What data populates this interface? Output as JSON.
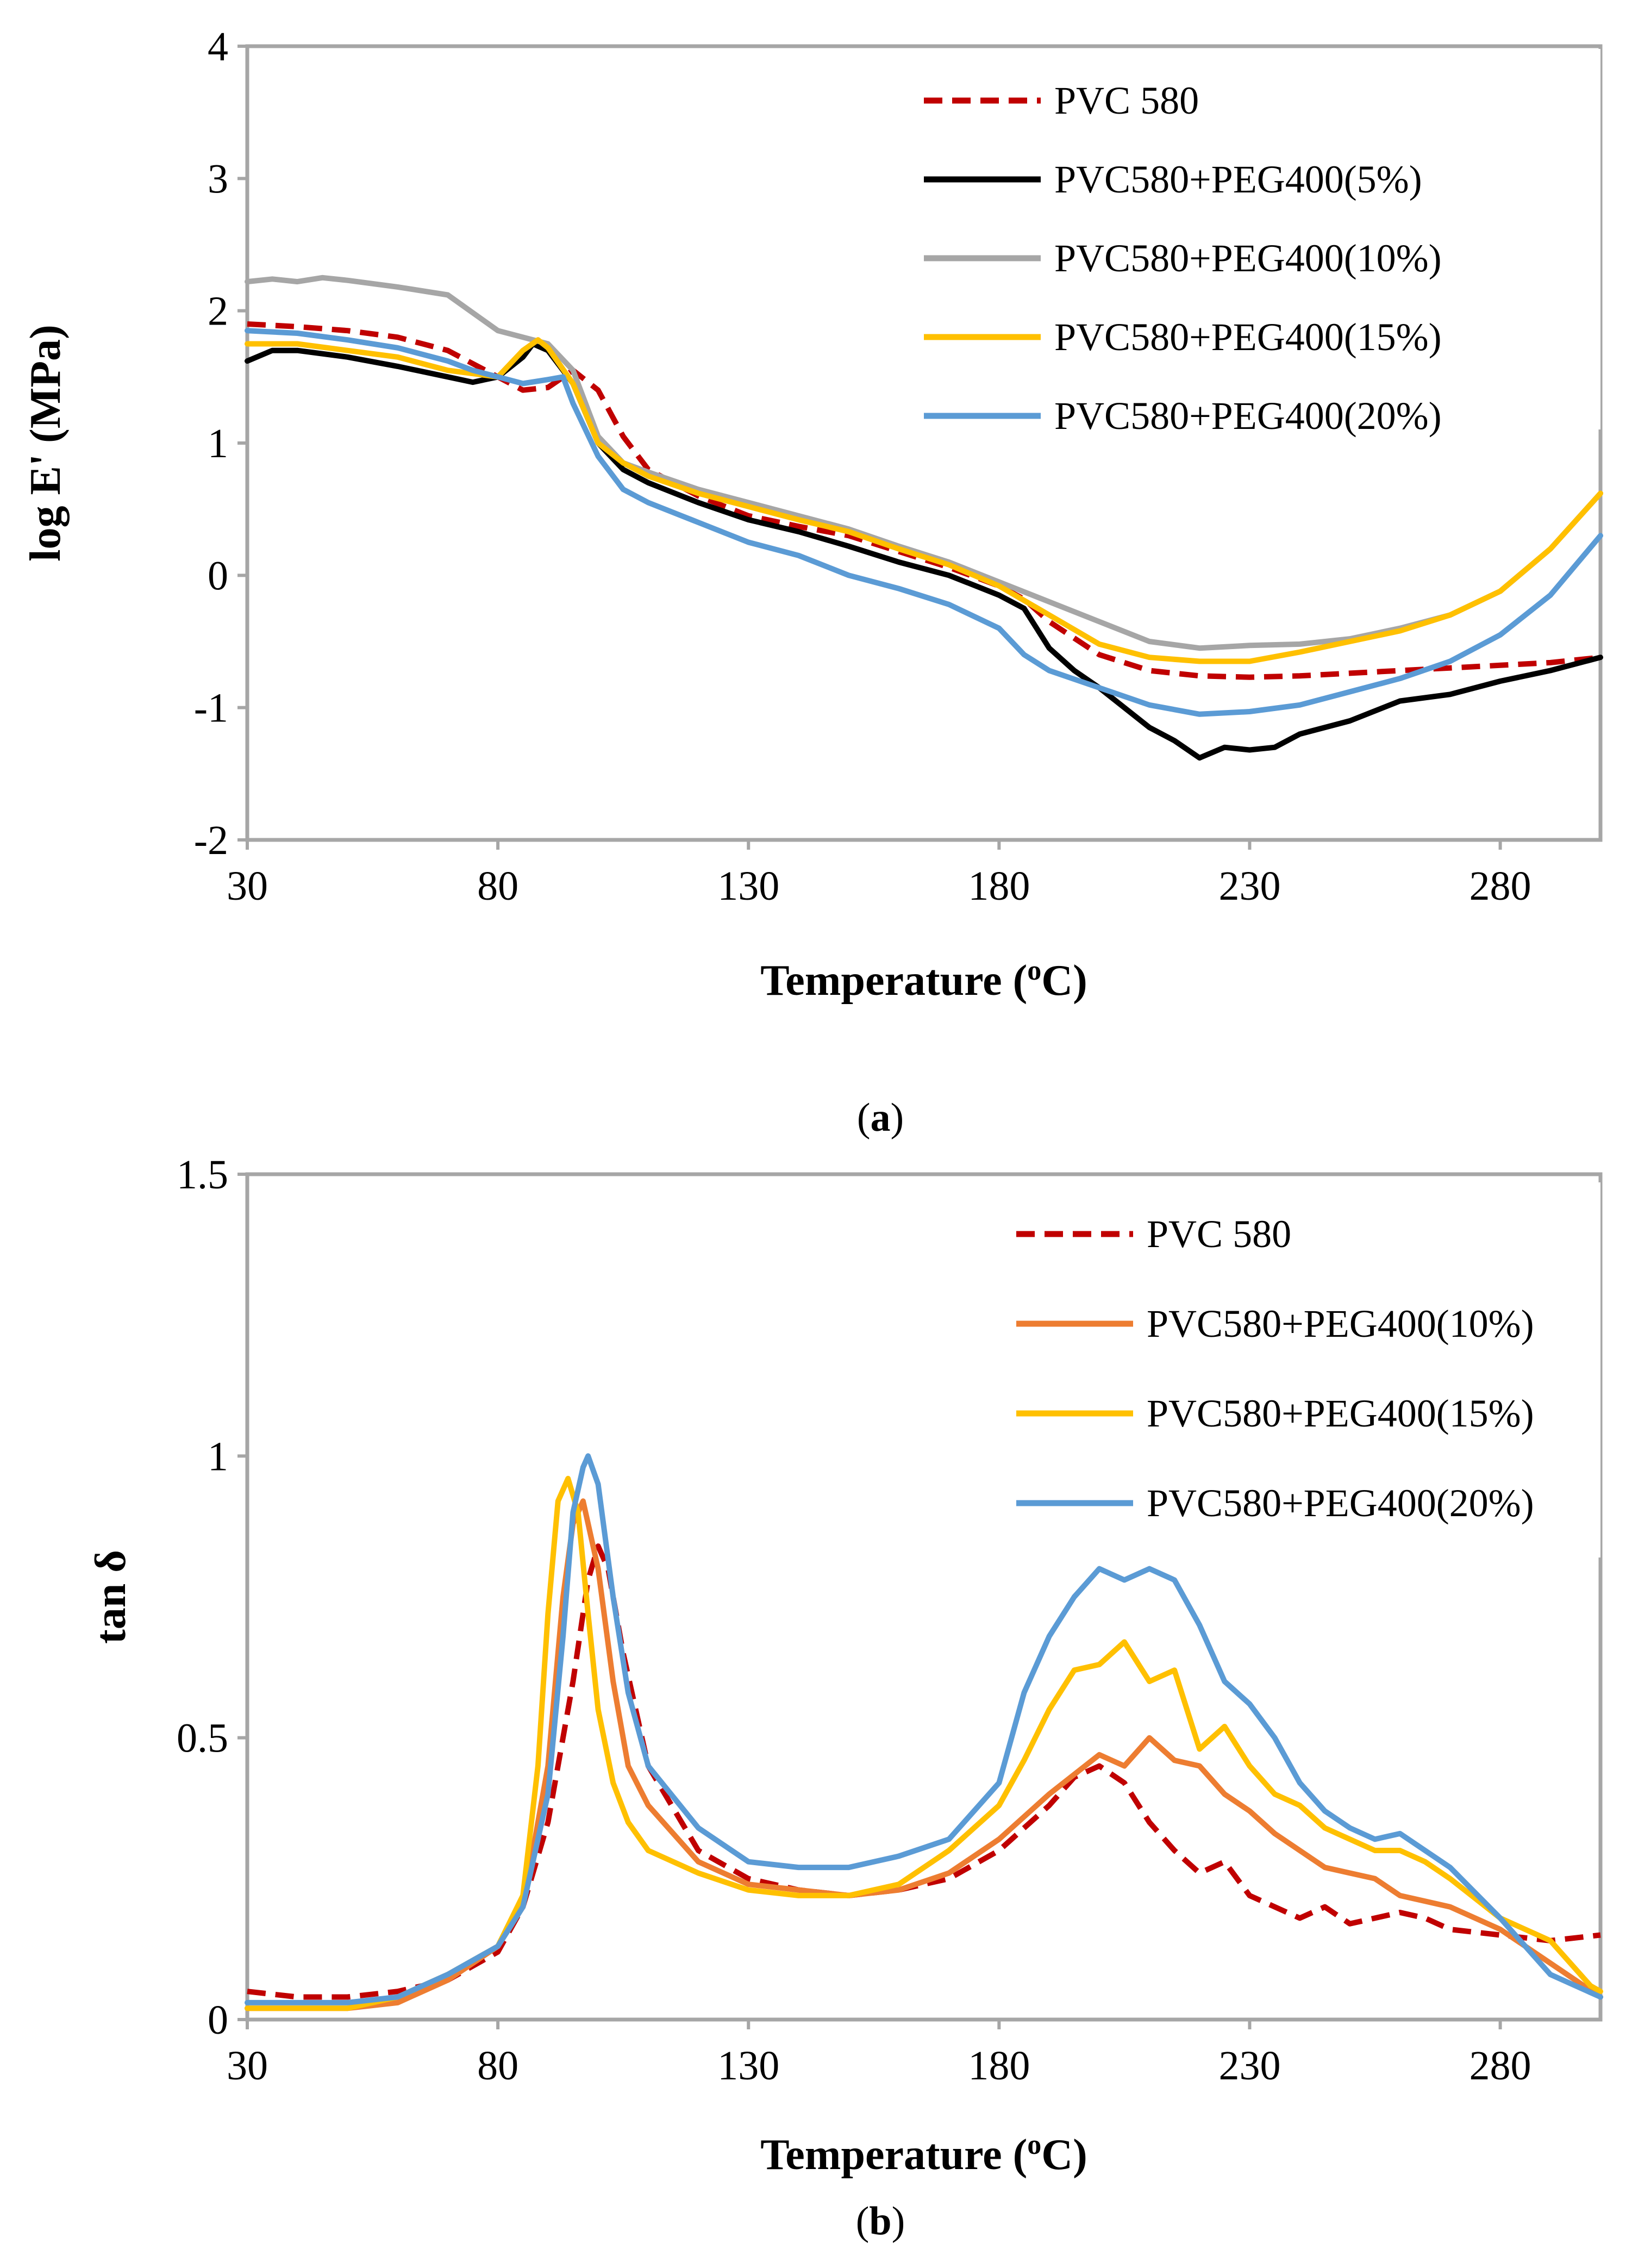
{
  "chart_data": [
    {
      "type": "line",
      "panel": "a",
      "caption": "(a)",
      "caption_letter": "a",
      "xlabel": "Temperature (oC)",
      "ylabel": "log E' (MPa)",
      "xlim": [
        30,
        300
      ],
      "ylim": [
        -2,
        4
      ],
      "xticks": [
        30,
        80,
        130,
        180,
        230,
        280
      ],
      "yticks": [
        -2,
        -1,
        0,
        1,
        2,
        3,
        4
      ],
      "legend_position": "top-right",
      "series": [
        {
          "name": "PVC 580",
          "color": "#C00000",
          "dash": "dashed",
          "width": 10,
          "x": [
            30,
            40,
            50,
            60,
            70,
            80,
            85,
            90,
            95,
            100,
            105,
            110,
            120,
            130,
            140,
            150,
            160,
            170,
            180,
            185,
            190,
            200,
            210,
            220,
            230,
            240,
            250,
            260,
            270,
            280,
            290,
            300
          ],
          "y": [
            1.9,
            1.88,
            1.85,
            1.8,
            1.7,
            1.5,
            1.4,
            1.42,
            1.55,
            1.4,
            1.05,
            0.8,
            0.6,
            0.45,
            0.37,
            0.3,
            0.18,
            0.06,
            -0.08,
            -0.18,
            -0.35,
            -0.6,
            -0.72,
            -0.76,
            -0.77,
            -0.76,
            -0.74,
            -0.72,
            -0.7,
            -0.68,
            -0.66,
            -0.62
          ]
        },
        {
          "name": "PVC580+PEG400(5%)",
          "color": "#000000",
          "dash": "solid",
          "width": 10,
          "x": [
            30,
            35,
            40,
            50,
            60,
            70,
            75,
            80,
            85,
            87,
            90,
            95,
            100,
            105,
            110,
            120,
            130,
            140,
            150,
            160,
            170,
            180,
            185,
            190,
            195,
            200,
            205,
            210,
            215,
            220,
            225,
            230,
            235,
            240,
            250,
            260,
            270,
            280,
            290,
            300
          ],
          "y": [
            1.62,
            1.7,
            1.7,
            1.65,
            1.58,
            1.5,
            1.46,
            1.5,
            1.65,
            1.75,
            1.7,
            1.45,
            1.0,
            0.8,
            0.7,
            0.55,
            0.42,
            0.33,
            0.22,
            0.1,
            0.0,
            -0.15,
            -0.25,
            -0.55,
            -0.72,
            -0.85,
            -1.0,
            -1.15,
            -1.25,
            -1.38,
            -1.3,
            -1.32,
            -1.3,
            -1.2,
            -1.1,
            -0.95,
            -0.9,
            -0.8,
            -0.72,
            -0.62
          ]
        },
        {
          "name": "PVC580+PEG400(10%)",
          "color": "#A6A6A6",
          "dash": "solid",
          "width": 10,
          "x": [
            30,
            35,
            40,
            45,
            50,
            60,
            70,
            80,
            85,
            90,
            95,
            100,
            105,
            110,
            120,
            130,
            140,
            150,
            160,
            170,
            180,
            190,
            200,
            210,
            220,
            230,
            240,
            250,
            260,
            270,
            280,
            290,
            300
          ],
          "y": [
            2.22,
            2.24,
            2.22,
            2.25,
            2.23,
            2.18,
            2.12,
            1.85,
            1.8,
            1.75,
            1.55,
            1.05,
            0.85,
            0.78,
            0.65,
            0.55,
            0.45,
            0.35,
            0.22,
            0.1,
            -0.05,
            -0.2,
            -0.35,
            -0.5,
            -0.55,
            -0.53,
            -0.52,
            -0.48,
            -0.4,
            -0.3,
            -0.12,
            0.2,
            0.62
          ]
        },
        {
          "name": "PVC580+PEG400(15%)",
          "color": "#FFC000",
          "dash": "solid",
          "width": 10,
          "x": [
            30,
            40,
            50,
            60,
            70,
            80,
            85,
            88,
            90,
            95,
            100,
            105,
            110,
            120,
            130,
            140,
            150,
            160,
            170,
            180,
            190,
            200,
            210,
            220,
            230,
            240,
            250,
            260,
            270,
            280,
            290,
            300
          ],
          "y": [
            1.75,
            1.75,
            1.7,
            1.65,
            1.55,
            1.5,
            1.7,
            1.78,
            1.72,
            1.45,
            1.0,
            0.85,
            0.75,
            0.62,
            0.52,
            0.42,
            0.33,
            0.2,
            0.08,
            -0.08,
            -0.3,
            -0.52,
            -0.62,
            -0.65,
            -0.65,
            -0.58,
            -0.5,
            -0.42,
            -0.3,
            -0.12,
            0.2,
            0.62
          ]
        },
        {
          "name": "PVC580+PEG400(20%)",
          "color": "#5B9BD5",
          "dash": "solid",
          "width": 10,
          "x": [
            30,
            40,
            50,
            60,
            70,
            75,
            80,
            85,
            90,
            93,
            95,
            100,
            105,
            110,
            120,
            130,
            140,
            150,
            160,
            170,
            180,
            185,
            190,
            200,
            210,
            220,
            230,
            240,
            250,
            260,
            270,
            280,
            290,
            300
          ],
          "y": [
            1.85,
            1.83,
            1.78,
            1.72,
            1.62,
            1.55,
            1.5,
            1.45,
            1.48,
            1.5,
            1.3,
            0.9,
            0.65,
            0.55,
            0.4,
            0.25,
            0.15,
            0.0,
            -0.1,
            -0.22,
            -0.4,
            -0.6,
            -0.72,
            -0.85,
            -0.98,
            -1.05,
            -1.03,
            -0.98,
            -0.88,
            -0.78,
            -0.65,
            -0.45,
            -0.15,
            0.3
          ]
        }
      ]
    },
    {
      "type": "line",
      "panel": "b",
      "caption": "(b)",
      "caption_letter": "b",
      "xlabel": "Temperature (oC)",
      "ylabel": "tan δ",
      "xlim": [
        30,
        300
      ],
      "ylim": [
        0,
        1.5
      ],
      "xticks": [
        30,
        80,
        130,
        180,
        230,
        280
      ],
      "yticks": [
        0,
        0.5,
        1,
        1.5
      ],
      "ytick_labels": [
        "0",
        "0.5",
        "1",
        "1.5"
      ],
      "legend_position": "top-right",
      "series": [
        {
          "name": "PVC 580",
          "color": "#C00000",
          "dash": "dashed",
          "width": 10,
          "x": [
            30,
            40,
            50,
            60,
            70,
            80,
            85,
            90,
            95,
            98,
            100,
            102,
            105,
            110,
            120,
            130,
            140,
            150,
            160,
            170,
            180,
            190,
            195,
            200,
            205,
            210,
            215,
            220,
            225,
            230,
            235,
            240,
            245,
            250,
            255,
            260,
            265,
            270,
            280,
            290,
            300
          ],
          "y": [
            0.05,
            0.04,
            0.04,
            0.05,
            0.07,
            0.12,
            0.2,
            0.35,
            0.6,
            0.78,
            0.84,
            0.8,
            0.65,
            0.45,
            0.3,
            0.25,
            0.23,
            0.22,
            0.23,
            0.25,
            0.3,
            0.38,
            0.43,
            0.45,
            0.42,
            0.35,
            0.3,
            0.26,
            0.28,
            0.22,
            0.2,
            0.18,
            0.2,
            0.17,
            0.18,
            0.19,
            0.18,
            0.16,
            0.15,
            0.14,
            0.15
          ]
        },
        {
          "name": "PVC580+PEG400(10%)",
          "color": "#ED7D31",
          "dash": "solid",
          "width": 10,
          "x": [
            30,
            40,
            50,
            60,
            70,
            80,
            85,
            90,
            93,
            95,
            97,
            100,
            103,
            106,
            110,
            120,
            130,
            140,
            150,
            160,
            170,
            180,
            190,
            200,
            205,
            210,
            215,
            220,
            225,
            230,
            235,
            240,
            245,
            250,
            255,
            260,
            265,
            270,
            280,
            290,
            300
          ],
          "y": [
            0.02,
            0.02,
            0.02,
            0.03,
            0.07,
            0.13,
            0.2,
            0.45,
            0.75,
            0.88,
            0.92,
            0.8,
            0.6,
            0.45,
            0.38,
            0.28,
            0.24,
            0.23,
            0.22,
            0.23,
            0.26,
            0.32,
            0.4,
            0.47,
            0.45,
            0.5,
            0.46,
            0.45,
            0.4,
            0.37,
            0.33,
            0.3,
            0.27,
            0.26,
            0.25,
            0.22,
            0.21,
            0.2,
            0.16,
            0.1,
            0.04
          ]
        },
        {
          "name": "PVC580+PEG400(15%)",
          "color": "#FFC000",
          "dash": "solid",
          "width": 10,
          "x": [
            30,
            40,
            50,
            60,
            70,
            80,
            85,
            88,
            90,
            92,
            94,
            96,
            98,
            100,
            103,
            106,
            110,
            120,
            130,
            140,
            150,
            160,
            170,
            180,
            185,
            190,
            195,
            200,
            205,
            210,
            215,
            220,
            225,
            230,
            235,
            240,
            245,
            250,
            255,
            260,
            265,
            270,
            280,
            290,
            298,
            300
          ],
          "y": [
            0.02,
            0.02,
            0.02,
            0.04,
            0.08,
            0.13,
            0.22,
            0.45,
            0.72,
            0.92,
            0.96,
            0.9,
            0.72,
            0.55,
            0.42,
            0.35,
            0.3,
            0.26,
            0.23,
            0.22,
            0.22,
            0.24,
            0.3,
            0.38,
            0.46,
            0.55,
            0.62,
            0.63,
            0.67,
            0.6,
            0.62,
            0.48,
            0.52,
            0.45,
            0.4,
            0.38,
            0.34,
            0.32,
            0.3,
            0.3,
            0.28,
            0.25,
            0.18,
            0.14,
            0.06,
            0.05
          ]
        },
        {
          "name": "PVC580+PEG400(20%)",
          "color": "#5B9BD5",
          "dash": "solid",
          "width": 10,
          "x": [
            30,
            40,
            50,
            60,
            70,
            80,
            85,
            90,
            93,
            95,
            97,
            98,
            100,
            103,
            106,
            110,
            120,
            130,
            140,
            150,
            160,
            170,
            180,
            185,
            190,
            195,
            200,
            205,
            210,
            215,
            220,
            225,
            230,
            235,
            240,
            245,
            250,
            255,
            260,
            265,
            270,
            280,
            290,
            300
          ],
          "y": [
            0.03,
            0.03,
            0.03,
            0.04,
            0.08,
            0.13,
            0.2,
            0.4,
            0.68,
            0.9,
            0.98,
            1.0,
            0.95,
            0.75,
            0.58,
            0.45,
            0.34,
            0.28,
            0.27,
            0.27,
            0.29,
            0.32,
            0.42,
            0.58,
            0.68,
            0.75,
            0.8,
            0.78,
            0.8,
            0.78,
            0.7,
            0.6,
            0.56,
            0.5,
            0.42,
            0.37,
            0.34,
            0.32,
            0.33,
            0.3,
            0.27,
            0.18,
            0.08,
            0.04
          ]
        }
      ]
    }
  ]
}
